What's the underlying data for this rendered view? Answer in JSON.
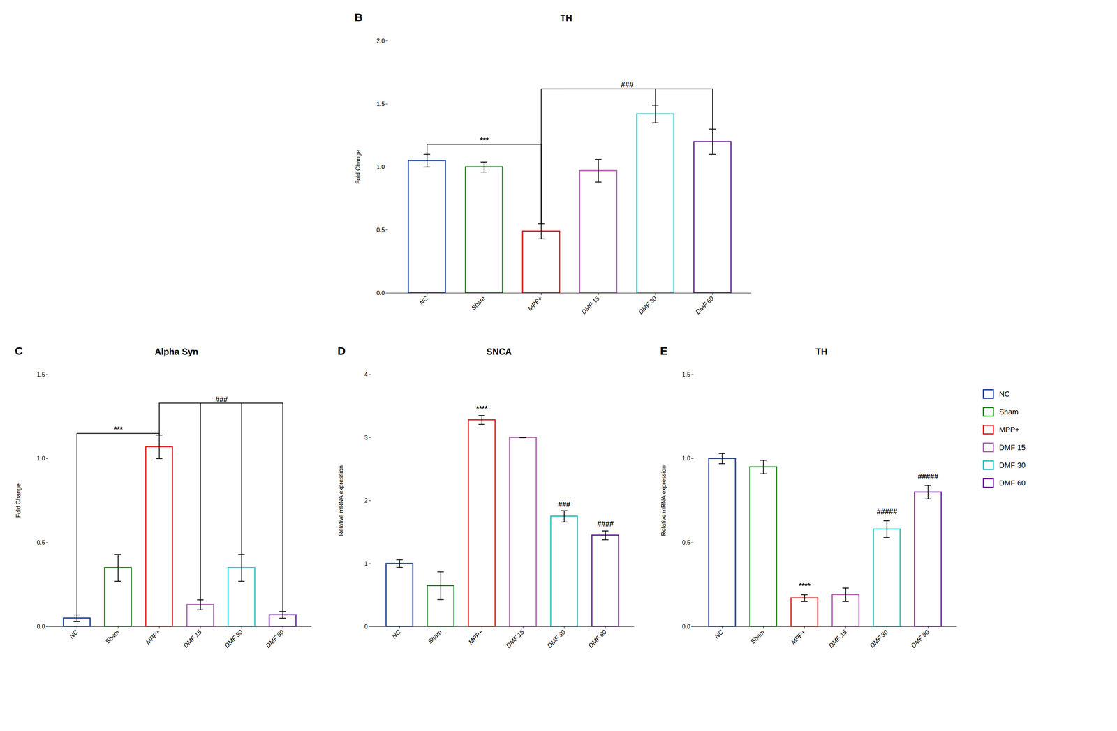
{
  "chart_data": [
    {
      "type": "bar",
      "panel_label": "B",
      "title": "TH",
      "ylabel": "Fold Change",
      "categories": [
        "NC",
        "Sham",
        "MPP+",
        "DMF 15",
        "DMF 30",
        "DMF 60"
      ],
      "values": [
        1.05,
        1.0,
        0.49,
        0.97,
        1.42,
        1.2
      ],
      "errors": [
        0.05,
        0.04,
        0.06,
        0.09,
        0.07,
        0.1
      ],
      "colors": [
        "#2040a0",
        "#208020",
        "#e02020",
        "#b060b0",
        "#30c0c0",
        "#7020a0"
      ],
      "ylim": [
        0,
        2.0
      ],
      "yticks": [
        {
          "value": 0,
          "label": "0.0"
        },
        {
          "value": 0.5,
          "label": "0.5"
        },
        {
          "value": 1,
          "label": "1.0"
        },
        {
          "value": 1.5,
          "label": "1.5"
        },
        {
          "value": 2,
          "label": "2.0"
        }
      ],
      "annotations": [
        {
          "text": "***",
          "categories": [
            "NC",
            "MPP+"
          ],
          "y": 1.18
        },
        {
          "text": "###",
          "categories": [
            "MPP+",
            "DMF 30",
            "DMF 60"
          ],
          "y": 1.62
        }
      ]
    },
    {
      "type": "bar",
      "panel_label": "C",
      "title": "Alpha Syn",
      "ylabel": "Fold Change",
      "categories": [
        "NC",
        "Sham",
        "MPP+",
        "DMF 15",
        "DMF 30",
        "DMF 60"
      ],
      "values": [
        0.05,
        0.35,
        1.07,
        0.13,
        0.35,
        0.07
      ],
      "errors": [
        0.02,
        0.08,
        0.07,
        0.03,
        0.08,
        0.02
      ],
      "colors": [
        "#2040a0",
        "#208020",
        "#e02020",
        "#b060b0",
        "#30c0c0",
        "#7020a0"
      ],
      "ylim": [
        0,
        1.5
      ],
      "yticks": [
        {
          "value": 0,
          "label": "0.0"
        },
        {
          "value": 0.5,
          "label": "0.5"
        },
        {
          "value": 1,
          "label": "1.0"
        },
        {
          "value": 1.5,
          "label": "1.5"
        }
      ],
      "annotations": [
        {
          "text": "***",
          "categories": [
            "NC",
            "MPP+"
          ],
          "y": 1.15
        },
        {
          "text": "###",
          "categories": [
            "MPP+",
            "DMF 15",
            "DMF 30",
            "DMF 60"
          ],
          "y": 1.33
        }
      ]
    },
    {
      "type": "bar",
      "panel_label": "D",
      "title": "SNCA",
      "ylabel": "Relative mRNA expression",
      "categories": [
        "NC",
        "Sham",
        "MPP+",
        "DMF 15",
        "DMF 30",
        "DMF 60"
      ],
      "values": [
        1.0,
        0.65,
        3.28,
        3.0,
        1.75,
        1.45
      ],
      "errors": [
        0.06,
        0.22,
        0.07,
        0.0,
        0.09,
        0.07
      ],
      "colors": [
        "#2040a0",
        "#208020",
        "#e02020",
        "#b060b0",
        "#30c0c0",
        "#7020a0"
      ],
      "ylim": [
        0,
        4.0
      ],
      "yticks": [
        0,
        1,
        2,
        3,
        4
      ],
      "annotations": [
        {
          "text": "****",
          "categories": [
            "MPP+"
          ],
          "y": 3.4
        },
        {
          "text": "###",
          "categories": [
            "DMF 30"
          ],
          "y": 1.88
        },
        {
          "text": "####",
          "categories": [
            "DMF 60"
          ],
          "y": 1.57
        }
      ]
    },
    {
      "type": "bar",
      "panel_label": "E",
      "title": "TH",
      "ylabel": "Relative mRNA expression",
      "categories": [
        "NC",
        "Sham",
        "MPP+",
        "DMF 15",
        "DMF 30",
        "DMF 60"
      ],
      "values": [
        1.0,
        0.95,
        0.17,
        0.19,
        0.58,
        0.8
      ],
      "errors": [
        0.03,
        0.04,
        0.02,
        0.04,
        0.05,
        0.04
      ],
      "colors": [
        "#2040a0",
        "#208020",
        "#e02020",
        "#b060b0",
        "#30c0c0",
        "#7020a0"
      ],
      "ylim": [
        0,
        1.5
      ],
      "yticks": [
        {
          "value": 0,
          "label": "0.0"
        },
        {
          "value": 0.5,
          "label": "0.5"
        },
        {
          "value": 1,
          "label": "1.0"
        },
        {
          "value": 1.5,
          "label": "1.5"
        }
      ],
      "legend": "right",
      "annotations": [
        {
          "text": "****",
          "categories": [
            "MPP+"
          ],
          "y": 0.22
        },
        {
          "text": "#####",
          "categories": [
            "DMF 30"
          ],
          "y": 0.66
        },
        {
          "text": "#####",
          "categories": [
            "DMF 60"
          ],
          "y": 0.87
        }
      ]
    }
  ]
}
